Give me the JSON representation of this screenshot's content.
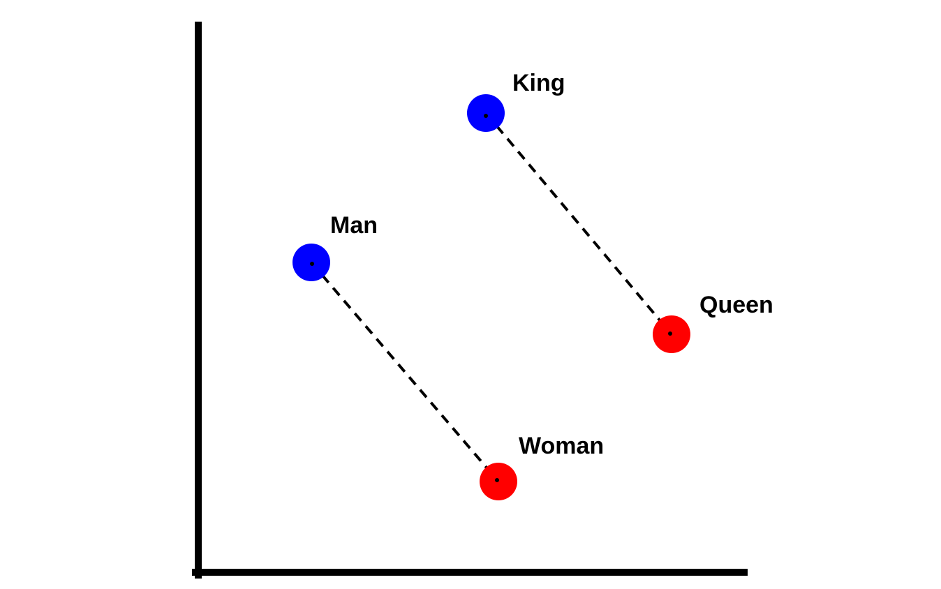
{
  "diagram": {
    "description_colors": {
      "male": "#0000ff",
      "female": "#ff0000",
      "axes": "#000000",
      "connector": "#000000"
    },
    "points": [
      {
        "id": "king",
        "label": "King",
        "group": "male"
      },
      {
        "id": "queen",
        "label": "Queen",
        "group": "female"
      },
      {
        "id": "man",
        "label": "Man",
        "group": "male"
      },
      {
        "id": "woman",
        "label": "Woman",
        "group": "female"
      }
    ],
    "connections": [
      {
        "from": "king",
        "to": "queen",
        "style": "dashed"
      },
      {
        "from": "man",
        "to": "woman",
        "style": "dashed"
      }
    ]
  }
}
